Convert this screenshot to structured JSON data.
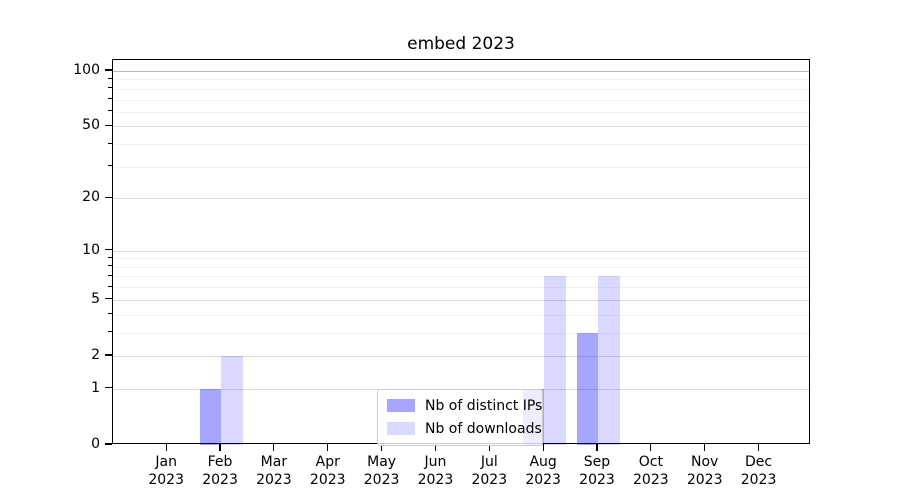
{
  "chart_data": {
    "type": "bar",
    "title": "embed 2023",
    "categories": [
      "Jan 2023",
      "Feb 2023",
      "Mar 2023",
      "Apr 2023",
      "May 2023",
      "Jun 2023",
      "Jul 2023",
      "Aug 2023",
      "Sep 2023",
      "Oct 2023",
      "Nov 2023",
      "Dec 2023"
    ],
    "series": [
      {
        "name": "Nb of distinct IPs",
        "values": [
          0,
          1,
          0,
          0,
          0,
          0,
          0,
          1,
          3,
          0,
          0,
          0
        ],
        "color": "rgba(0,0,255,0.35)"
      },
      {
        "name": "Nb of downloads",
        "values": [
          0,
          2,
          0,
          0,
          0,
          0,
          0,
          7,
          7,
          0,
          0,
          0
        ],
        "color": "rgba(0,0,255,0.15)"
      }
    ],
    "xlabel": "",
    "ylabel": "",
    "yscale": "log1p",
    "ylim": [
      0,
      115
    ],
    "yticks": [
      0,
      1,
      2,
      5,
      10,
      20,
      50,
      100
    ],
    "minor_yticks": [
      3,
      4,
      6,
      7,
      8,
      9,
      30,
      40,
      60,
      70,
      80,
      90
    ],
    "grid": "horizontal",
    "legend_position": "lower center"
  },
  "colors": {
    "bar_distinct_ips": "rgba(0,0,255,0.35)",
    "bar_downloads": "rgba(0,0,255,0.15)",
    "grid_major": "#dcdcdc",
    "grid_minor": "#f1f1f1",
    "grid_top": "#b9b9b9",
    "axis": "#000000",
    "legend_border": "#cccccc"
  }
}
